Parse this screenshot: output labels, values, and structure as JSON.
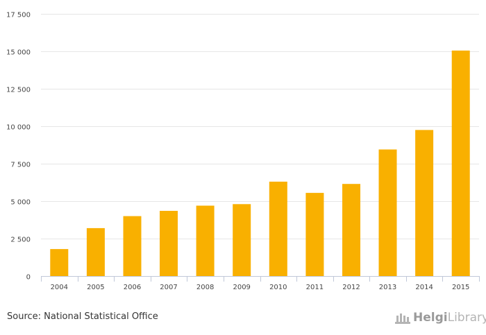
{
  "chart_data": {
    "type": "bar",
    "title": "",
    "xlabel": "",
    "ylabel": "",
    "categories": [
      "2004",
      "2005",
      "2006",
      "2007",
      "2008",
      "2009",
      "2010",
      "2011",
      "2012",
      "2013",
      "2014",
      "2015"
    ],
    "values": [
      1800,
      3200,
      4000,
      4350,
      4700,
      4800,
      6300,
      5550,
      6150,
      8450,
      9750,
      15050
    ],
    "ylim": [
      0,
      17500
    ],
    "yticks": [
      0,
      2500,
      5000,
      7500,
      10000,
      12500,
      15000,
      17500
    ],
    "ytick_labels": [
      "0",
      "2 500",
      "5 000",
      "7 500",
      "10 000",
      "12 500",
      "15 000",
      "17 500"
    ],
    "bar_color": "#F9B000",
    "grid": true,
    "legend": "none"
  },
  "footer": {
    "source": "Source: National Statistical Office",
    "logo_bold": "Helgi",
    "logo_light": "Library."
  },
  "colors": {
    "bar": "#F9B000",
    "grid": "#E6E6E6",
    "axis": "#C0C8D8"
  }
}
